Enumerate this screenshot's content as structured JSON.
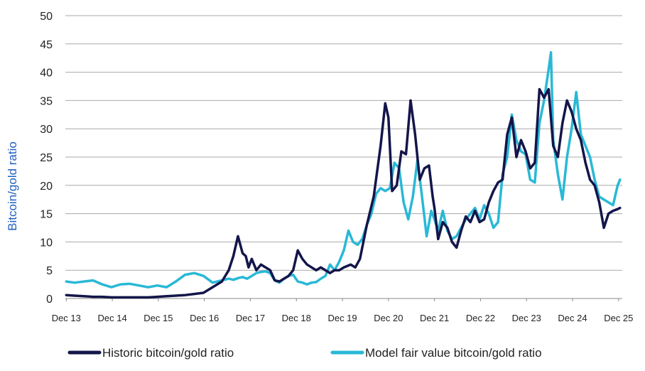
{
  "chart_data": {
    "type": "line",
    "title": "",
    "xlabel": "",
    "ylabel": "Bitcoin/gold ratio",
    "ylim": [
      0,
      50
    ],
    "yticks": [
      0,
      5,
      10,
      15,
      20,
      25,
      30,
      35,
      40,
      45,
      50
    ],
    "xlim": [
      2013.9,
      2026.0
    ],
    "xtick_labels": [
      "Dec 13",
      "Dec 14",
      "Dec 15",
      "Dec 16",
      "Dec 17",
      "Dec 18",
      "Dec 19",
      "Dec 20",
      "Dec 21",
      "Dec 22",
      "Dec 23",
      "Dec 24",
      "Dec 25"
    ],
    "xtick_positions": [
      2013.92,
      2014.92,
      2015.92,
      2016.92,
      2017.92,
      2018.92,
      2019.92,
      2020.92,
      2021.92,
      2022.92,
      2023.92,
      2024.92,
      2025.92
    ],
    "grid": "horizontal",
    "legend_position": "bottom",
    "series": [
      {
        "name": "Historic bitcoin/gold ratio",
        "color": "#14154a",
        "x": [
          2013.92,
          2014.1,
          2014.3,
          2014.5,
          2014.7,
          2014.9,
          2015.1,
          2015.3,
          2015.5,
          2015.7,
          2015.9,
          2016.1,
          2016.3,
          2016.5,
          2016.7,
          2016.9,
          2017.1,
          2017.3,
          2017.45,
          2017.55,
          2017.65,
          2017.75,
          2017.82,
          2017.88,
          2017.95,
          2018.05,
          2018.15,
          2018.25,
          2018.35,
          2018.45,
          2018.55,
          2018.65,
          2018.75,
          2018.85,
          2018.95,
          2019.05,
          2019.15,
          2019.25,
          2019.35,
          2019.45,
          2019.55,
          2019.65,
          2019.75,
          2019.85,
          2019.95,
          2020.1,
          2020.2,
          2020.3,
          2020.45,
          2020.6,
          2020.75,
          2020.85,
          2020.92,
          2021.0,
          2021.1,
          2021.2,
          2021.3,
          2021.4,
          2021.5,
          2021.6,
          2021.7,
          2021.8,
          2021.88,
          2021.92,
          2022.0,
          2022.1,
          2022.2,
          2022.3,
          2022.4,
          2022.5,
          2022.6,
          2022.7,
          2022.8,
          2022.9,
          2023.0,
          2023.1,
          2023.2,
          2023.3,
          2023.4,
          2023.5,
          2023.6,
          2023.7,
          2023.8,
          2023.9,
          2024.0,
          2024.1,
          2024.2,
          2024.3,
          2024.4,
          2024.5,
          2024.6,
          2024.7,
          2024.8,
          2024.9,
          2025.0,
          2025.1,
          2025.2,
          2025.3,
          2025.4,
          2025.5,
          2025.6,
          2025.7,
          2025.8,
          2025.9,
          2025.95
        ],
        "y": [
          0.6,
          0.5,
          0.4,
          0.3,
          0.3,
          0.2,
          0.2,
          0.2,
          0.2,
          0.2,
          0.3,
          0.4,
          0.5,
          0.6,
          0.8,
          1.0,
          2.0,
          3.0,
          5.0,
          7.5,
          11.0,
          8.0,
          7.5,
          5.5,
          7.0,
          5.0,
          6.0,
          5.5,
          5.0,
          3.2,
          3.0,
          3.5,
          4.0,
          5.0,
          8.5,
          7.0,
          6.0,
          5.5,
          5.0,
          5.5,
          5.0,
          4.5,
          5.0,
          5.0,
          5.5,
          6.0,
          5.5,
          7.0,
          13.0,
          18.0,
          27.0,
          34.5,
          32.0,
          19.0,
          20.0,
          26.0,
          25.5,
          35.0,
          29.0,
          21.0,
          23.0,
          23.5,
          18.0,
          16.0,
          10.5,
          13.5,
          12.5,
          10.0,
          9.0,
          12.0,
          14.5,
          13.5,
          15.5,
          13.5,
          14.0,
          17.0,
          19.0,
          20.5,
          21.0,
          29.0,
          32.0,
          25.0,
          28.0,
          26.0,
          23.0,
          24.0,
          37.0,
          35.5,
          37.0,
          27.0,
          25.0,
          31.0,
          35.0,
          33.0,
          30.0,
          28.0,
          24.0,
          21.0,
          20.0,
          17.0,
          12.5,
          15.0,
          15.5,
          15.8,
          16.0
        ],
        "y_trim": 105
      },
      {
        "name": "Model fair value bitcoin/gold ratio",
        "color": "#29b8d6",
        "x": [
          2013.92,
          2014.1,
          2014.3,
          2014.5,
          2014.7,
          2014.9,
          2015.1,
          2015.3,
          2015.5,
          2015.7,
          2015.9,
          2016.1,
          2016.3,
          2016.5,
          2016.7,
          2016.9,
          2017.1,
          2017.3,
          2017.45,
          2017.55,
          2017.65,
          2017.75,
          2017.85,
          2017.95,
          2018.05,
          2018.15,
          2018.25,
          2018.35,
          2018.45,
          2018.55,
          2018.65,
          2018.75,
          2018.85,
          2018.95,
          2019.05,
          2019.15,
          2019.25,
          2019.35,
          2019.45,
          2019.55,
          2019.65,
          2019.75,
          2019.85,
          2019.95,
          2020.05,
          2020.15,
          2020.25,
          2020.35,
          2020.45,
          2020.55,
          2020.65,
          2020.75,
          2020.85,
          2020.95,
          2021.05,
          2021.15,
          2021.25,
          2021.35,
          2021.45,
          2021.55,
          2021.65,
          2021.75,
          2021.85,
          2021.92,
          2022.0,
          2022.1,
          2022.2,
          2022.3,
          2022.4,
          2022.5,
          2022.6,
          2022.7,
          2022.8,
          2022.9,
          2023.0,
          2023.1,
          2023.2,
          2023.3,
          2023.4,
          2023.5,
          2023.6,
          2023.7,
          2023.8,
          2023.9,
          2024.0,
          2024.1,
          2024.2,
          2024.3,
          2024.4,
          2024.45,
          2024.5,
          2024.6,
          2024.7,
          2024.8,
          2024.9,
          2025.0,
          2025.1,
          2025.2,
          2025.3,
          2025.4,
          2025.5,
          2025.6,
          2025.7,
          2025.8,
          2025.9,
          2025.95
        ],
        "y": [
          3.0,
          2.8,
          3.0,
          3.2,
          2.5,
          2.0,
          2.5,
          2.6,
          2.3,
          2.0,
          2.3,
          2.0,
          3.0,
          4.2,
          4.5,
          4.0,
          2.8,
          3.2,
          3.5,
          3.3,
          3.6,
          3.8,
          3.5,
          4.0,
          4.5,
          4.7,
          4.8,
          4.5,
          3.2,
          2.8,
          3.5,
          4.0,
          4.2,
          3.0,
          2.8,
          2.5,
          2.8,
          2.9,
          3.5,
          4.0,
          6.0,
          5.0,
          6.5,
          8.5,
          12.0,
          10.0,
          9.5,
          10.5,
          13.0,
          15.0,
          18.5,
          19.5,
          19.0,
          19.5,
          24.0,
          23.0,
          17.0,
          14.0,
          18.0,
          24.5,
          18.0,
          11.0,
          15.5,
          14.0,
          12.0,
          15.5,
          12.0,
          10.5,
          11.0,
          12.5,
          14.0,
          15.0,
          16.0,
          14.0,
          16.5,
          15.0,
          12.5,
          13.5,
          22.0,
          25.0,
          32.5,
          28.0,
          26.0,
          25.5,
          21.0,
          20.5,
          31.0,
          35.0,
          40.5,
          43.5,
          28.0,
          22.0,
          17.5,
          25.0,
          30.0,
          36.5,
          29.0,
          27.0,
          25.0,
          21.0,
          18.0,
          17.5,
          17.0,
          16.5,
          20.0,
          21.0
        ],
        "y_trim": 106
      }
    ]
  },
  "legend": {
    "items": [
      {
        "label": "Historic bitcoin/gold ratio",
        "color": "#14154a"
      },
      {
        "label": "Model fair value bitcoin/gold ratio",
        "color": "#29b8d6"
      }
    ]
  }
}
